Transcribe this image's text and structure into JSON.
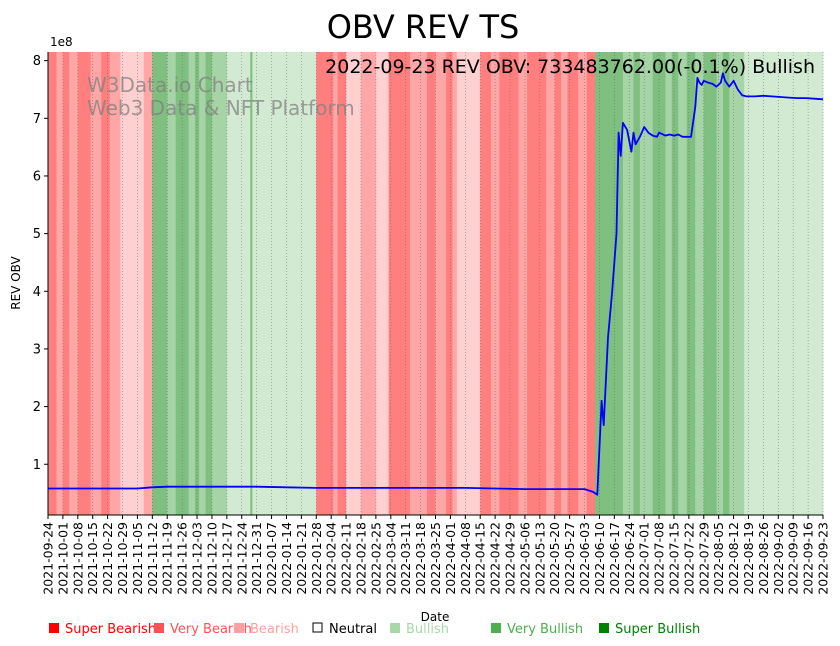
{
  "chart_data": {
    "type": "line",
    "title": "OBV REV TS",
    "subtitle": "2022-09-23 REV OBV: 733483762.00(-0.1%) Bullish",
    "watermark": [
      "W3Data.io Chart",
      "Web3 Data & NFT Platform"
    ],
    "xlabel": "Date",
    "ylabel": "REV OBV",
    "y_multiplier_label": "1e8",
    "x_start": "2021-09-24",
    "x_end": "2022-09-23",
    "ylim": [
      0.12,
      8.15
    ],
    "yticks": [
      1,
      2,
      3,
      4,
      5,
      6,
      7,
      8
    ],
    "ytick_labels": [
      "1",
      "2",
      "3",
      "4",
      "5",
      "6",
      "7",
      "8"
    ],
    "xtick_labels": [
      "2021-09-24",
      "2021-10-01",
      "2021-10-08",
      "2021-10-15",
      "2021-10-22",
      "2021-10-29",
      "2021-11-05",
      "2021-11-12",
      "2021-11-19",
      "2021-11-26",
      "2021-12-03",
      "2021-12-10",
      "2021-12-17",
      "2021-12-24",
      "2021-12-31",
      "2022-01-07",
      "2022-01-14",
      "2022-01-21",
      "2022-01-28",
      "2022-02-04",
      "2022-02-11",
      "2022-02-18",
      "2022-02-25",
      "2022-03-04",
      "2022-03-11",
      "2022-03-18",
      "2022-03-25",
      "2022-04-01",
      "2022-04-08",
      "2022-04-15",
      "2022-04-22",
      "2022-04-29",
      "2022-05-06",
      "2022-05-13",
      "2022-05-20",
      "2022-05-27",
      "2022-06-03",
      "2022-06-10",
      "2022-06-17",
      "2022-06-24",
      "2022-07-01",
      "2022-07-08",
      "2022-07-15",
      "2022-07-22",
      "2022-07-29",
      "2022-08-05",
      "2022-08-12",
      "2022-08-19",
      "2022-08-26",
      "2022-09-02",
      "2022-09-09",
      "2022-09-16",
      "2022-09-23"
    ],
    "series": [
      {
        "name": "REV OBV (x1e8)",
        "color": "#0000ff",
        "points": [
          [
            0,
            0.58
          ],
          [
            14,
            0.58
          ],
          [
            28,
            0.58
          ],
          [
            42,
            0.58
          ],
          [
            49,
            0.6
          ],
          [
            56,
            0.61
          ],
          [
            70,
            0.61
          ],
          [
            84,
            0.61
          ],
          [
            98,
            0.61
          ],
          [
            112,
            0.6
          ],
          [
            126,
            0.59
          ],
          [
            140,
            0.59
          ],
          [
            154,
            0.59
          ],
          [
            168,
            0.59
          ],
          [
            182,
            0.59
          ],
          [
            196,
            0.59
          ],
          [
            210,
            0.58
          ],
          [
            224,
            0.57
          ],
          [
            238,
            0.57
          ],
          [
            252,
            0.57
          ],
          [
            256,
            0.52
          ],
          [
            258,
            0.47
          ],
          [
            260,
            2.1
          ],
          [
            261,
            1.68
          ],
          [
            263,
            3.2
          ],
          [
            265,
            4.0
          ],
          [
            267,
            5.0
          ],
          [
            268,
            6.75
          ],
          [
            269,
            6.35
          ],
          [
            270,
            6.92
          ],
          [
            272,
            6.8
          ],
          [
            274,
            6.42
          ],
          [
            275,
            6.75
          ],
          [
            276,
            6.55
          ],
          [
            278,
            6.68
          ],
          [
            280,
            6.85
          ],
          [
            282,
            6.75
          ],
          [
            284,
            6.7
          ],
          [
            286,
            6.68
          ],
          [
            287,
            6.75
          ],
          [
            290,
            6.7
          ],
          [
            292,
            6.72
          ],
          [
            294,
            6.7
          ],
          [
            296,
            6.72
          ],
          [
            298,
            6.68
          ],
          [
            300,
            6.68
          ],
          [
            302,
            6.68
          ],
          [
            304,
            7.2
          ],
          [
            305,
            7.7
          ],
          [
            306,
            7.62
          ],
          [
            307,
            7.58
          ],
          [
            308,
            7.65
          ],
          [
            310,
            7.62
          ],
          [
            312,
            7.6
          ],
          [
            314,
            7.55
          ],
          [
            316,
            7.62
          ],
          [
            317,
            7.78
          ],
          [
            318,
            7.65
          ],
          [
            320,
            7.55
          ],
          [
            322,
            7.65
          ],
          [
            324,
            7.5
          ],
          [
            326,
            7.4
          ],
          [
            328,
            7.38
          ],
          [
            332,
            7.38
          ],
          [
            336,
            7.39
          ],
          [
            340,
            7.38
          ],
          [
            344,
            7.37
          ],
          [
            348,
            7.36
          ],
          [
            352,
            7.35
          ],
          [
            356,
            7.35
          ],
          [
            360,
            7.34
          ],
          [
            364,
            7.33
          ]
        ]
      }
    ],
    "sentiment_bands": [
      {
        "from": 0,
        "to": 4,
        "level": "very_bearish"
      },
      {
        "from": 4,
        "to": 7,
        "level": "bearish"
      },
      {
        "from": 7,
        "to": 10,
        "level": "very_bearish"
      },
      {
        "from": 10,
        "to": 14,
        "level": "bearish"
      },
      {
        "from": 14,
        "to": 20,
        "level": "very_bearish"
      },
      {
        "from": 20,
        "to": 25,
        "level": "bearish"
      },
      {
        "from": 25,
        "to": 29,
        "level": "very_bearish"
      },
      {
        "from": 29,
        "to": 34,
        "level": "bearish"
      },
      {
        "from": 34,
        "to": 45,
        "level": "light_bearish"
      },
      {
        "from": 45,
        "to": 49,
        "level": "bearish"
      },
      {
        "from": 49,
        "to": 56,
        "level": "very_bullish"
      },
      {
        "from": 56,
        "to": 60,
        "level": "bullish"
      },
      {
        "from": 60,
        "to": 66,
        "level": "very_bullish"
      },
      {
        "from": 66,
        "to": 69,
        "level": "bullish"
      },
      {
        "from": 69,
        "to": 71,
        "level": "very_bullish"
      },
      {
        "from": 71,
        "to": 74,
        "level": "bullish"
      },
      {
        "from": 74,
        "to": 77,
        "level": "very_bullish"
      },
      {
        "from": 77,
        "to": 84,
        "level": "bullish"
      },
      {
        "from": 84,
        "to": 95,
        "level": "light_bullish"
      },
      {
        "from": 95,
        "to": 96,
        "level": "very_bullish"
      },
      {
        "from": 96,
        "to": 126,
        "level": "light_bullish"
      },
      {
        "from": 126,
        "to": 134,
        "level": "very_bearish"
      },
      {
        "from": 134,
        "to": 136,
        "level": "bearish"
      },
      {
        "from": 136,
        "to": 140,
        "level": "very_bearish"
      },
      {
        "from": 140,
        "to": 147,
        "level": "light_bearish"
      },
      {
        "from": 147,
        "to": 154,
        "level": "bearish"
      },
      {
        "from": 154,
        "to": 160,
        "level": "light_bearish"
      },
      {
        "from": 160,
        "to": 170,
        "level": "very_bearish"
      },
      {
        "from": 170,
        "to": 178,
        "level": "bearish"
      },
      {
        "from": 178,
        "to": 182,
        "level": "very_bearish"
      },
      {
        "from": 182,
        "to": 187,
        "level": "bearish"
      },
      {
        "from": 187,
        "to": 190,
        "level": "very_bearish"
      },
      {
        "from": 190,
        "to": 192,
        "level": "bearish"
      },
      {
        "from": 192,
        "to": 203,
        "level": "light_bearish"
      },
      {
        "from": 203,
        "to": 208,
        "level": "very_bearish"
      },
      {
        "from": 208,
        "to": 212,
        "level": "bearish"
      },
      {
        "from": 212,
        "to": 221,
        "level": "very_bearish"
      },
      {
        "from": 221,
        "to": 225,
        "level": "bearish"
      },
      {
        "from": 225,
        "to": 234,
        "level": "very_bearish"
      },
      {
        "from": 234,
        "to": 238,
        "level": "bearish"
      },
      {
        "from": 238,
        "to": 241,
        "level": "very_bearish"
      },
      {
        "from": 241,
        "to": 244,
        "level": "bearish"
      },
      {
        "from": 244,
        "to": 249,
        "level": "very_bearish"
      },
      {
        "from": 249,
        "to": 253,
        "level": "bearish"
      },
      {
        "from": 253,
        "to": 257,
        "level": "very_bearish"
      },
      {
        "from": 257,
        "to": 266,
        "level": "very_bullish"
      },
      {
        "from": 266,
        "to": 270,
        "level": "very_bullish"
      },
      {
        "from": 270,
        "to": 275,
        "level": "bullish"
      },
      {
        "from": 275,
        "to": 278,
        "level": "very_bullish"
      },
      {
        "from": 278,
        "to": 284,
        "level": "bullish"
      },
      {
        "from": 284,
        "to": 290,
        "level": "very_bullish"
      },
      {
        "from": 290,
        "to": 293,
        "level": "bullish"
      },
      {
        "from": 293,
        "to": 296,
        "level": "very_bullish"
      },
      {
        "from": 296,
        "to": 300,
        "level": "bullish"
      },
      {
        "from": 300,
        "to": 304,
        "level": "very_bullish"
      },
      {
        "from": 304,
        "to": 308,
        "level": "bullish"
      },
      {
        "from": 308,
        "to": 314,
        "level": "very_bullish"
      },
      {
        "from": 314,
        "to": 317,
        "level": "bullish"
      },
      {
        "from": 317,
        "to": 320,
        "level": "very_bullish"
      },
      {
        "from": 320,
        "to": 327,
        "level": "bullish"
      },
      {
        "from": 327,
        "to": 365,
        "level": "light_bullish"
      }
    ],
    "band_colors": {
      "very_bearish": "#ff7f7f",
      "bearish": "#ffa6a6",
      "light_bearish": "#ffd0d0",
      "very_bullish": "#7fbf7f",
      "bullish": "#a6d4a6",
      "light_bullish": "#d2ead2"
    },
    "legend": [
      {
        "label": "Super Bearish",
        "color": "#ff0000"
      },
      {
        "label": "Very Bearish",
        "color": "#ff5252"
      },
      {
        "label": "Bearish",
        "color": "#ffa0a0"
      },
      {
        "label": "Neutral",
        "color": "#000000",
        "hollow": true
      },
      {
        "label": "Bullish",
        "color": "#a8d8a8"
      },
      {
        "label": "Very Bullish",
        "color": "#4caf50"
      },
      {
        "label": "Super Bullish",
        "color": "#008000"
      }
    ]
  }
}
